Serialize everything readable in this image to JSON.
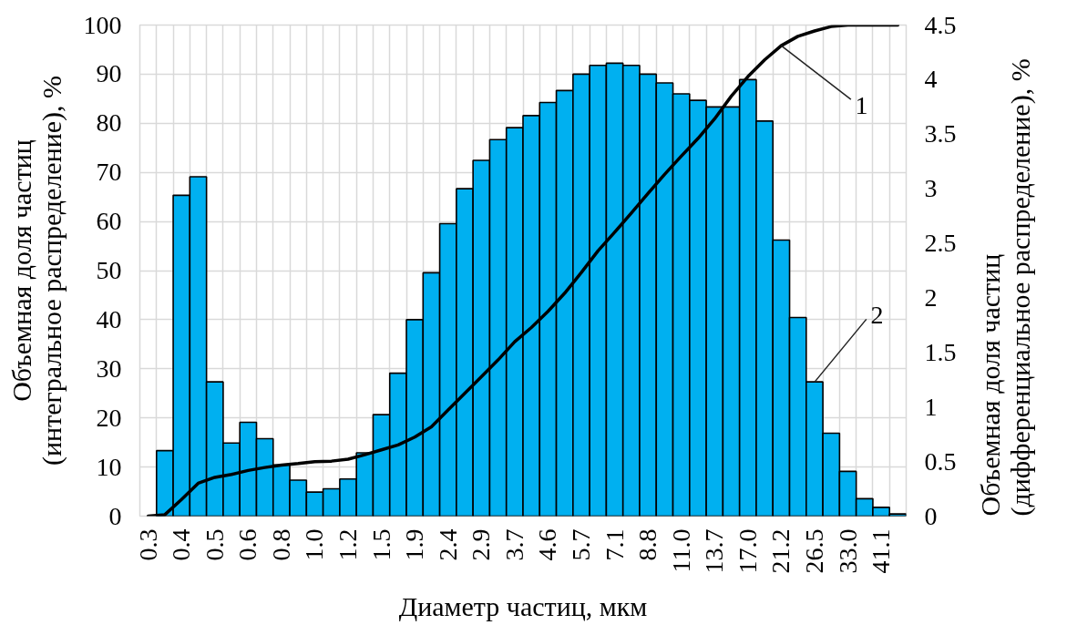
{
  "chart_data": {
    "type": "bar",
    "xlabel": "Диаметр частиц, мкм",
    "ylabel": "Объемная доля частиц (интегральное распределение), %",
    "y2label": "Объемная доля частиц (дифференциальное распределение), %",
    "categories": [
      "0.3",
      null,
      "0.4",
      null,
      "0.5",
      null,
      "0.6",
      null,
      "0.8",
      null,
      "1.0",
      null,
      "1.2",
      null,
      "1.5",
      null,
      "1.9",
      null,
      "2.4",
      null,
      "2.9",
      null,
      "3.7",
      null,
      "4.6",
      null,
      "5.7",
      null,
      "7.1",
      null,
      "8.8",
      null,
      "11.0",
      null,
      "13.7",
      null,
      "17.0",
      null,
      "21.2",
      null,
      "26.5",
      null,
      "33.0",
      null,
      "41.1",
      null
    ],
    "series": [
      {
        "axis": "y2",
        "color": "#00b0f0",
        "values": [
          null,
          0.6,
          2.94,
          3.11,
          1.23,
          0.67,
          0.86,
          0.71,
          0.47,
          0.33,
          0.22,
          0.25,
          0.34,
          0.58,
          0.93,
          1.31,
          1.8,
          2.23,
          2.68,
          3.0,
          3.26,
          3.45,
          3.56,
          3.67,
          3.79,
          3.9,
          4.05,
          4.13,
          4.15,
          4.13,
          4.05,
          3.97,
          3.87,
          3.81,
          3.75,
          3.75,
          4.0,
          3.62,
          2.53,
          1.82,
          1.23,
          0.76,
          0.41,
          0.16,
          0.08,
          0.02
        ]
      },
      {
        "type": "line",
        "color": "#000000",
        "values": [
          0,
          0.3,
          3.4,
          6.7,
          7.9,
          8.5,
          9.3,
          9.9,
          10.4,
          10.7,
          11.1,
          11.2,
          11.6,
          12.5,
          13.5,
          14.5,
          16.1,
          18.2,
          21.6,
          25.0,
          28.4,
          31.8,
          35.5,
          38.4,
          41.7,
          45.4,
          49.6,
          54.0,
          57.8,
          61.7,
          65.7,
          69.6,
          73.3,
          76.9,
          80.9,
          85.5,
          89.5,
          92.9,
          95.8,
          97.7,
          98.8,
          99.7,
          100,
          100,
          100,
          100
        ]
      }
    ],
    "ylim": [
      0,
      100
    ],
    "yticks": [
      0,
      10,
      20,
      30,
      40,
      50,
      60,
      70,
      80,
      90,
      100
    ],
    "y2lim": [
      0,
      4.5
    ],
    "y2ticks": [
      0,
      0.5,
      1,
      1.5,
      2,
      2.5,
      3,
      3.5,
      4,
      4.5
    ],
    "grid": true,
    "annotations": [
      {
        "text": "1",
        "x": "21.2",
        "y": 95.8
      },
      {
        "text": "2",
        "x": "26.5",
        "y": 27.3
      }
    ]
  }
}
